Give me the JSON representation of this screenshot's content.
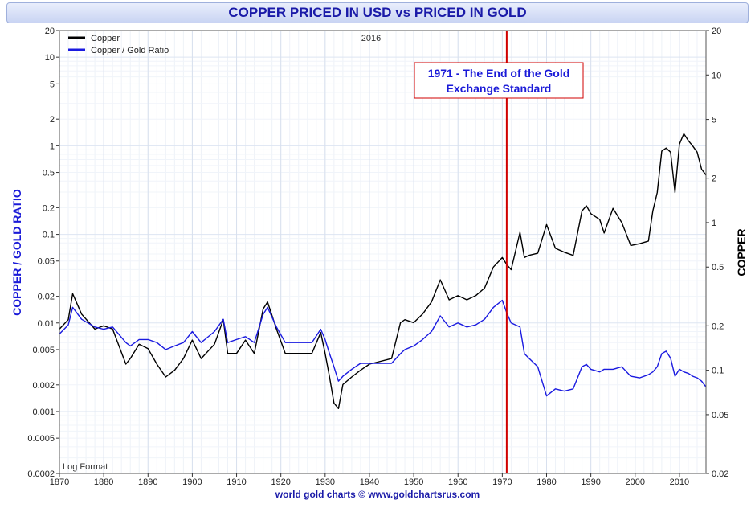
{
  "title": "COPPER PRICED IN USD vs PRICED IN GOLD",
  "footer": "world gold charts © www.goldchartsrus.com",
  "chart_data": {
    "type": "line",
    "title": "COPPER PRICED IN USD vs PRICED IN GOLD",
    "xlabel": "",
    "ylabel_left": "COPPER / GOLD RATIO",
    "ylabel_right": "COPPER",
    "xlim": [
      1870,
      2016
    ],
    "ylim_left": [
      0.0002,
      20
    ],
    "ylim_right": [
      0.02,
      20
    ],
    "log_scale": true,
    "grid": true,
    "legend_position": "top-left",
    "x_ticks": [
      "1870",
      "1880",
      "1890",
      "1900",
      "1910",
      "1920",
      "1930",
      "1940",
      "1950",
      "1960",
      "1970",
      "1980",
      "1990",
      "2000",
      "2010"
    ],
    "y_ticks_left": [
      "20",
      "10",
      "5",
      "2",
      "1",
      "0.5",
      "0.2",
      "0.1",
      "0.05",
      "0.02",
      "0.01",
      "0.005",
      "0.002",
      "0.001",
      "0.0005",
      "0.0002"
    ],
    "y_ticks_right": [
      "20",
      "10",
      "5",
      "2",
      "1",
      "0.5",
      "0.2",
      "0.1",
      "0.05",
      "0.02"
    ],
    "corner_label": "2016",
    "scale_note": "Log Format",
    "annotation": {
      "x": 1971,
      "line1": "1971 - The End of the Gold",
      "line2": "Exchange Standard"
    },
    "series": [
      {
        "name": "Copper",
        "axis": "right",
        "color": "#000000",
        "x": [
          1870,
          1872,
          1873,
          1875,
          1878,
          1880,
          1882,
          1885,
          1886,
          1888,
          1890,
          1892,
          1894,
          1896,
          1898,
          1900,
          1902,
          1905,
          1907,
          1908,
          1910,
          1912,
          1914,
          1916,
          1917,
          1919,
          1921,
          1924,
          1927,
          1929,
          1930,
          1931,
          1932,
          1933,
          1934,
          1936,
          1938,
          1940,
          1945,
          1947,
          1948,
          1950,
          1952,
          1954,
          1956,
          1958,
          1960,
          1962,
          1964,
          1966,
          1968,
          1970,
          1971,
          1972,
          1974,
          1975,
          1976,
          1978,
          1980,
          1982,
          1984,
          1986,
          1988,
          1989,
          1990,
          1992,
          1993,
          1995,
          1997,
          1999,
          2001,
          2003,
          2004,
          2005,
          2006,
          2007,
          2008,
          2009,
          2010,
          2011,
          2012,
          2013,
          2014,
          2015,
          2016
        ],
        "values": [
          0.19,
          0.22,
          0.33,
          0.24,
          0.19,
          0.2,
          0.19,
          0.11,
          0.12,
          0.15,
          0.14,
          0.11,
          0.09,
          0.1,
          0.12,
          0.16,
          0.12,
          0.15,
          0.22,
          0.13,
          0.13,
          0.16,
          0.13,
          0.26,
          0.29,
          0.19,
          0.13,
          0.13,
          0.13,
          0.18,
          0.13,
          0.09,
          0.06,
          0.055,
          0.08,
          0.09,
          0.1,
          0.11,
          0.12,
          0.21,
          0.22,
          0.21,
          0.24,
          0.29,
          0.41,
          0.3,
          0.32,
          0.3,
          0.32,
          0.36,
          0.5,
          0.58,
          0.52,
          0.48,
          0.86,
          0.58,
          0.6,
          0.62,
          0.97,
          0.67,
          0.63,
          0.6,
          1.2,
          1.3,
          1.15,
          1.05,
          0.85,
          1.25,
          1.0,
          0.7,
          0.72,
          0.75,
          1.2,
          1.6,
          3.05,
          3.2,
          3.0,
          1.6,
          3.4,
          4.0,
          3.6,
          3.3,
          3.0,
          2.3,
          2.1
        ]
      },
      {
        "name": "Copper / Gold Ratio",
        "axis": "left",
        "color": "#1a1ae0",
        "x": [
          1870,
          1872,
          1873,
          1875,
          1878,
          1880,
          1882,
          1885,
          1886,
          1888,
          1890,
          1892,
          1894,
          1896,
          1898,
          1900,
          1902,
          1905,
          1907,
          1908,
          1910,
          1912,
          1914,
          1916,
          1917,
          1919,
          1921,
          1924,
          1927,
          1929,
          1930,
          1931,
          1932,
          1933,
          1934,
          1936,
          1938,
          1940,
          1945,
          1947,
          1948,
          1950,
          1952,
          1954,
          1956,
          1958,
          1960,
          1962,
          1964,
          1966,
          1968,
          1970,
          1971,
          1972,
          1974,
          1975,
          1976,
          1978,
          1980,
          1982,
          1984,
          1986,
          1988,
          1989,
          1990,
          1992,
          1993,
          1995,
          1997,
          1999,
          2001,
          2003,
          2004,
          2005,
          2006,
          2007,
          2008,
          2009,
          2010,
          2011,
          2012,
          2013,
          2014,
          2015,
          2016
        ],
        "values": [
          0.0075,
          0.0095,
          0.015,
          0.011,
          0.009,
          0.0085,
          0.009,
          0.006,
          0.0055,
          0.0065,
          0.0065,
          0.006,
          0.005,
          0.0055,
          0.006,
          0.008,
          0.006,
          0.008,
          0.011,
          0.006,
          0.0065,
          0.007,
          0.006,
          0.0125,
          0.015,
          0.009,
          0.006,
          0.006,
          0.006,
          0.0085,
          0.0065,
          0.0045,
          0.0032,
          0.0022,
          0.0025,
          0.003,
          0.0035,
          0.0035,
          0.0035,
          0.0045,
          0.005,
          0.0055,
          0.0065,
          0.008,
          0.012,
          0.009,
          0.01,
          0.009,
          0.0095,
          0.011,
          0.015,
          0.018,
          0.013,
          0.01,
          0.009,
          0.0045,
          0.004,
          0.0032,
          0.0015,
          0.0018,
          0.0017,
          0.0018,
          0.0032,
          0.0034,
          0.003,
          0.0028,
          0.003,
          0.003,
          0.0032,
          0.0025,
          0.0024,
          0.0026,
          0.0028,
          0.0032,
          0.0045,
          0.0048,
          0.004,
          0.0025,
          0.003,
          0.0028,
          0.0027,
          0.0025,
          0.0024,
          0.0022,
          0.0019
        ]
      }
    ]
  }
}
